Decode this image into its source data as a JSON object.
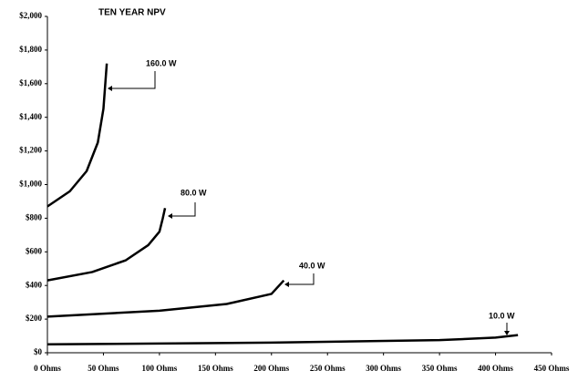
{
  "chart_data": {
    "type": "line",
    "title": "TEN YEAR NPV",
    "series": [
      {
        "name": "160.0 W",
        "color": "#000000",
        "x": [
          0,
          20,
          35,
          45,
          50,
          53
        ],
        "values": [
          870,
          960,
          1080,
          1250,
          1450,
          1720
        ]
      },
      {
        "name": "80.0 W",
        "color": "#000000",
        "x": [
          0,
          40,
          70,
          90,
          100,
          103,
          105
        ],
        "values": [
          430,
          480,
          550,
          640,
          720,
          800,
          860
        ]
      },
      {
        "name": "40.0 W",
        "color": "#000000",
        "x": [
          0,
          100,
          160,
          200,
          211
        ],
        "values": [
          215,
          250,
          290,
          350,
          430
        ]
      },
      {
        "name": "10.0 W",
        "color": "#000000",
        "x": [
          0,
          200,
          350,
          400,
          420
        ],
        "values": [
          50,
          60,
          75,
          90,
          105
        ]
      }
    ],
    "xlim": [
      0,
      450
    ],
    "xticks": [
      {
        "value": 0,
        "label": "0 Ohms"
      },
      {
        "value": 50,
        "label": "50 Ohms"
      },
      {
        "value": 100,
        "label": "100 Ohms"
      },
      {
        "value": 150,
        "label": "150 Ohms"
      },
      {
        "value": 200,
        "label": "200 Ohms"
      },
      {
        "value": 250,
        "label": "250 Ohms"
      },
      {
        "value": 300,
        "label": "300 Ohms"
      },
      {
        "value": 350,
        "label": "350 Ohms"
      },
      {
        "value": 400,
        "label": "400 Ohms"
      },
      {
        "value": 450,
        "label": "450 Ohms"
      }
    ],
    "ylim": [
      0,
      2000
    ],
    "yticks": [
      {
        "value": 0,
        "label": "$0"
      },
      {
        "value": 200,
        "label": "$200"
      },
      {
        "value": 400,
        "label": "$400"
      },
      {
        "value": 600,
        "label": "$600"
      },
      {
        "value": 800,
        "label": "$800"
      },
      {
        "value": 1000,
        "label": "$1,000"
      },
      {
        "value": 1200,
        "label": "$1,200"
      },
      {
        "value": 1400,
        "label": "$1,400"
      },
      {
        "value": 1600,
        "label": "$1,600"
      },
      {
        "value": 1800,
        "label": "$1,800"
      },
      {
        "value": 2000,
        "label": "$2,000"
      }
    ],
    "grid": false
  }
}
